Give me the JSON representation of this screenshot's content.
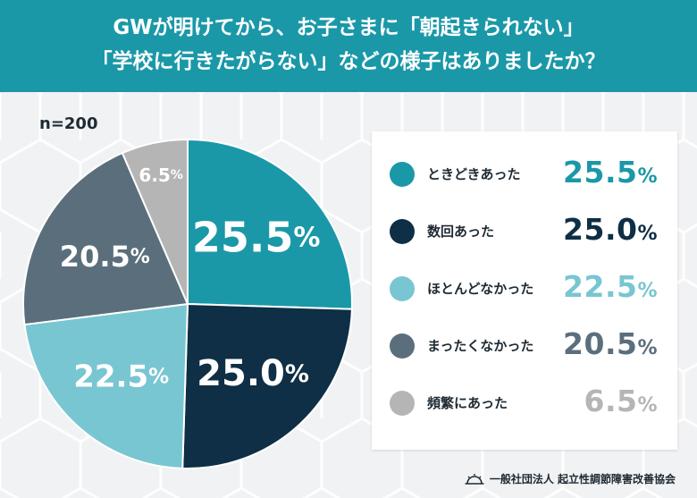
{
  "header": {
    "line1": "GWが明けてから、お子さまに「朝起きられない」",
    "line2": "「学校に行きたがらない」などの様子はありましたか？"
  },
  "sample_size": "n=200",
  "percent_sign": "%",
  "footer": {
    "org": "一般社団法人 起立性調節障害改善協会"
  },
  "chart_data": {
    "type": "pie",
    "title": "GWが明けてから、お子さまに「朝起きられない」「学校に行きたがらない」などの様子はありましたか？",
    "categories": [
      "ときどきあった",
      "数回あった",
      "ほとんどなかった",
      "まったくなかった",
      "頻繁にあった"
    ],
    "values": [
      25.5,
      25.0,
      22.5,
      20.5,
      6.5
    ],
    "value_labels": [
      "25.5",
      "25.0",
      "22.5",
      "20.5",
      "6.5"
    ],
    "colors": [
      "#1a98a8",
      "#0e2f45",
      "#78c6d2",
      "#5b6e7c",
      "#b5b5b5"
    ],
    "legend_placement": "right"
  }
}
